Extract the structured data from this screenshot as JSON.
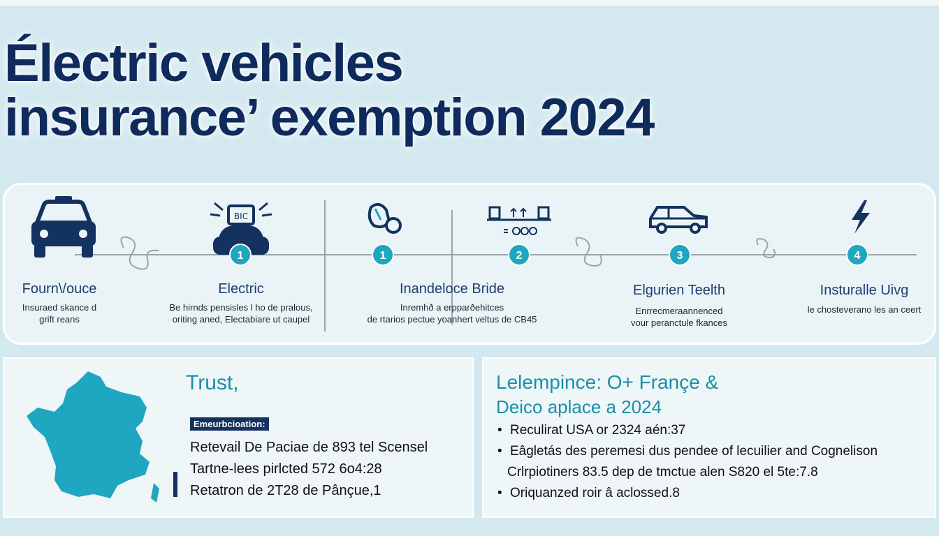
{
  "title": {
    "line1": "Électric vehicles",
    "line2": "insurance’ exemption 2024"
  },
  "timeline": {
    "steps": [
      {
        "title": "Fourn\\/ouce",
        "desc1": "Insuraed skance d",
        "desc2": "grift reans",
        "icon": "car-front-icon"
      },
      {
        "title": "Electric",
        "desc1": "Be hirnds pensisles l ho de pralous,",
        "desc2": "oriting aned, Electabiare ut caupel",
        "icon": "car-charging-icon",
        "badge": "1"
      },
      {
        "title": "Inandeloce Bride",
        "desc1": "Inremhð a erpparðehitces",
        "desc2": "de rtarios pectue yoanhert veltus de CB45",
        "icon": "battery-plug-icon",
        "badge": "1"
      },
      {
        "title": "",
        "desc1": "",
        "desc2": "",
        "icon": "charging-station-icon",
        "badge": "2"
      },
      {
        "title": "Elgurien Teelth",
        "desc1": "Enrrecmeraannenced",
        "desc2": "vour peranctule fkances",
        "icon": "suv-side-icon",
        "badge": "3"
      },
      {
        "title": "Insturalle Uivg",
        "desc1": "le chosteverano les an ceert",
        "desc2": "",
        "icon": "lightning-bolt-icon",
        "badge": "4"
      }
    ]
  },
  "left_panel": {
    "heading": "Trust,",
    "tag": "Emeurbcioation:",
    "lines": [
      "Retevail De Paciae de 893 tel Scensel",
      "Tartne-lees pirlcted 572 6o4:28",
      "Retatron de 2T28 de Pânçue,1"
    ],
    "map_icon": "france-map-icon",
    "map_color": "#1fa6c0"
  },
  "right_panel": {
    "heading1": "Lelempince: O+ Françe &",
    "heading2": "Deico aplace a 2024",
    "bullets": [
      "Reculirat USA or 2324 aén:37",
      "Eâgletás des peremesi dus pendee of lecuilier and Cognelison",
      "Crlrpiotiners 83.5 dep de tmctue alen S820 el 5te:7.8",
      "Oriquanzed roir â aclossed.8"
    ]
  },
  "colors": {
    "navy": "#0f2a5c",
    "teal": "#1fa6c0",
    "background": "#d3e9ef"
  }
}
